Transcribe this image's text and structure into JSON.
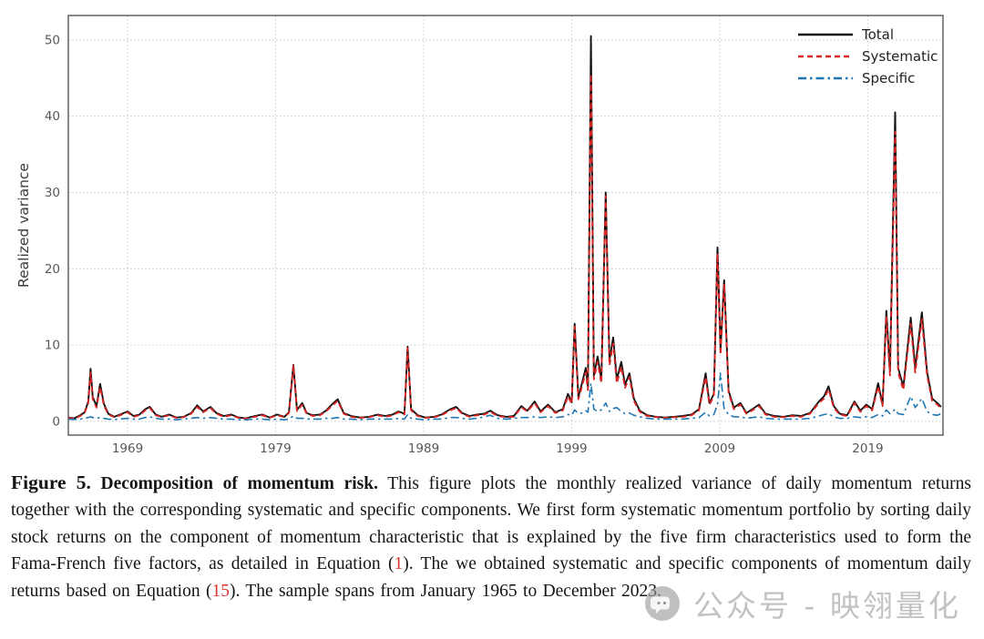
{
  "chart_data": {
    "type": "line",
    "title": "",
    "xlabel": "",
    "ylabel": "Realized variance",
    "xlim": [
      1965.0,
      2024.08
    ],
    "ylim": [
      -1.8,
      53.2
    ],
    "x_ticks": [
      1969,
      1979,
      1989,
      1999,
      2009,
      2019
    ],
    "y_ticks": [
      0,
      10,
      20,
      30,
      40,
      50
    ],
    "grid": true,
    "legend_position": "upper right",
    "series_meta": [
      {
        "name": "Total",
        "color": "#111111",
        "dash": "solid",
        "dasharray": ""
      },
      {
        "name": "Systematic",
        "color": "#d92523",
        "dash": "dashed",
        "dasharray": "6 4"
      },
      {
        "name": "Specific",
        "color": "#1f77b4",
        "dash": "dashdot",
        "dasharray": "9 4 2.5 4"
      }
    ],
    "columns": [
      "year",
      "total",
      "systematic",
      "specific"
    ],
    "points": [
      [
        1965.0,
        0.5,
        0.45,
        0.3
      ],
      [
        1965.4,
        0.4,
        0.35,
        0.25
      ],
      [
        1965.8,
        0.8,
        0.7,
        0.3
      ],
      [
        1966.1,
        1.2,
        1.1,
        0.4
      ],
      [
        1966.35,
        2.6,
        2.4,
        0.5
      ],
      [
        1966.5,
        6.9,
        6.4,
        0.6
      ],
      [
        1966.65,
        3.2,
        2.9,
        0.5
      ],
      [
        1966.9,
        2.0,
        1.8,
        0.4
      ],
      [
        1967.15,
        4.9,
        4.5,
        0.5
      ],
      [
        1967.4,
        2.3,
        2.1,
        0.4
      ],
      [
        1967.7,
        1.0,
        0.9,
        0.3
      ],
      [
        1968.1,
        0.6,
        0.55,
        0.25
      ],
      [
        1968.5,
        0.9,
        0.8,
        0.3
      ],
      [
        1969.0,
        1.3,
        1.2,
        0.4
      ],
      [
        1969.4,
        0.7,
        0.6,
        0.3
      ],
      [
        1969.8,
        0.9,
        0.8,
        0.3
      ],
      [
        1970.2,
        1.6,
        1.45,
        0.5
      ],
      [
        1970.5,
        1.9,
        1.75,
        0.6
      ],
      [
        1970.9,
        0.9,
        0.8,
        0.4
      ],
      [
        1971.3,
        0.6,
        0.55,
        0.3
      ],
      [
        1971.8,
        0.9,
        0.8,
        0.3
      ],
      [
        1972.3,
        0.5,
        0.45,
        0.2
      ],
      [
        1972.8,
        0.6,
        0.55,
        0.3
      ],
      [
        1973.3,
        1.1,
        1.0,
        0.4
      ],
      [
        1973.7,
        2.1,
        1.9,
        0.5
      ],
      [
        1974.1,
        1.3,
        1.2,
        0.4
      ],
      [
        1974.6,
        1.9,
        1.75,
        0.5
      ],
      [
        1975.0,
        1.1,
        1.0,
        0.4
      ],
      [
        1975.5,
        0.7,
        0.6,
        0.3
      ],
      [
        1976.0,
        0.9,
        0.8,
        0.3
      ],
      [
        1976.5,
        0.5,
        0.45,
        0.2
      ],
      [
        1977.0,
        0.4,
        0.35,
        0.2
      ],
      [
        1977.6,
        0.7,
        0.6,
        0.3
      ],
      [
        1978.1,
        0.9,
        0.8,
        0.3
      ],
      [
        1978.6,
        0.5,
        0.45,
        0.2
      ],
      [
        1979.1,
        0.9,
        0.8,
        0.3
      ],
      [
        1979.6,
        0.6,
        0.55,
        0.2
      ],
      [
        1979.9,
        1.2,
        1.1,
        0.3
      ],
      [
        1980.2,
        7.4,
        7.3,
        0.7
      ],
      [
        1980.45,
        1.5,
        1.35,
        0.4
      ],
      [
        1980.8,
        2.4,
        2.2,
        0.4
      ],
      [
        1981.1,
        1.1,
        1.0,
        0.3
      ],
      [
        1981.5,
        0.8,
        0.7,
        0.3
      ],
      [
        1982.0,
        0.9,
        0.8,
        0.3
      ],
      [
        1982.4,
        1.4,
        1.3,
        0.4
      ],
      [
        1982.85,
        2.3,
        2.1,
        0.4
      ],
      [
        1983.2,
        2.9,
        2.7,
        0.5
      ],
      [
        1983.6,
        1.1,
        1.0,
        0.3
      ],
      [
        1984.1,
        0.7,
        0.6,
        0.3
      ],
      [
        1984.7,
        0.5,
        0.45,
        0.2
      ],
      [
        1985.3,
        0.6,
        0.55,
        0.3
      ],
      [
        1985.9,
        0.9,
        0.8,
        0.3
      ],
      [
        1986.4,
        0.7,
        0.6,
        0.3
      ],
      [
        1986.9,
        0.9,
        0.8,
        0.3
      ],
      [
        1987.3,
        1.3,
        1.2,
        0.4
      ],
      [
        1987.7,
        1.0,
        0.9,
        0.3
      ],
      [
        1987.92,
        9.8,
        9.6,
        0.9
      ],
      [
        1988.15,
        1.6,
        1.45,
        0.4
      ],
      [
        1988.6,
        0.8,
        0.7,
        0.3
      ],
      [
        1989.1,
        0.5,
        0.45,
        0.2
      ],
      [
        1989.7,
        0.6,
        0.55,
        0.3
      ],
      [
        1990.2,
        0.9,
        0.8,
        0.3
      ],
      [
        1990.8,
        1.6,
        1.45,
        0.5
      ],
      [
        1991.2,
        1.9,
        1.75,
        0.5
      ],
      [
        1991.6,
        1.1,
        1.0,
        0.4
      ],
      [
        1992.1,
        0.7,
        0.6,
        0.3
      ],
      [
        1992.6,
        0.9,
        0.8,
        0.4
      ],
      [
        1993.1,
        1.0,
        0.9,
        0.6
      ],
      [
        1993.5,
        1.4,
        1.25,
        0.8
      ],
      [
        1994.0,
        0.8,
        0.7,
        0.4
      ],
      [
        1994.6,
        0.6,
        0.55,
        0.3
      ],
      [
        1995.1,
        0.7,
        0.6,
        0.4
      ],
      [
        1995.6,
        2.0,
        1.85,
        0.5
      ],
      [
        1996.0,
        1.4,
        1.3,
        0.5
      ],
      [
        1996.5,
        2.6,
        2.4,
        0.6
      ],
      [
        1996.9,
        1.3,
        1.2,
        0.5
      ],
      [
        1997.4,
        2.2,
        2.0,
        0.6
      ],
      [
        1997.9,
        1.2,
        1.1,
        0.5
      ],
      [
        1998.4,
        1.6,
        1.45,
        0.6
      ],
      [
        1998.75,
        3.6,
        3.3,
        0.9
      ],
      [
        1999.0,
        2.5,
        2.3,
        0.8
      ],
      [
        1999.2,
        12.8,
        12.4,
        1.5
      ],
      [
        1999.45,
        3.2,
        2.9,
        1.0
      ],
      [
        1999.7,
        5.0,
        4.6,
        1.1
      ],
      [
        1999.95,
        7.0,
        6.4,
        1.4
      ],
      [
        2000.1,
        4.5,
        4.1,
        1.2
      ],
      [
        2000.3,
        50.5,
        45.5,
        5.0
      ],
      [
        2000.5,
        6.0,
        5.5,
        1.6
      ],
      [
        2000.75,
        8.5,
        7.8,
        1.3
      ],
      [
        2001.0,
        5.5,
        5.0,
        1.5
      ],
      [
        2001.3,
        30.0,
        29.5,
        2.4
      ],
      [
        2001.55,
        8.0,
        7.3,
        1.3
      ],
      [
        2001.8,
        11.0,
        10.2,
        1.7
      ],
      [
        2002.05,
        5.5,
        5.0,
        1.8
      ],
      [
        2002.35,
        7.8,
        7.2,
        1.3
      ],
      [
        2002.6,
        4.8,
        4.4,
        1.0
      ],
      [
        2002.9,
        6.3,
        5.8,
        1.1
      ],
      [
        2003.2,
        3.0,
        2.7,
        0.8
      ],
      [
        2003.6,
        1.4,
        1.25,
        0.6
      ],
      [
        2004.1,
        0.8,
        0.7,
        0.4
      ],
      [
        2004.7,
        0.6,
        0.55,
        0.3
      ],
      [
        2005.3,
        0.5,
        0.45,
        0.3
      ],
      [
        2005.9,
        0.6,
        0.55,
        0.3
      ],
      [
        2006.5,
        0.7,
        0.6,
        0.3
      ],
      [
        2007.1,
        0.9,
        0.8,
        0.4
      ],
      [
        2007.6,
        1.6,
        1.45,
        0.5
      ],
      [
        2008.05,
        6.3,
        5.8,
        1.2
      ],
      [
        2008.3,
        2.4,
        2.2,
        0.7
      ],
      [
        2008.6,
        3.6,
        3.3,
        0.9
      ],
      [
        2008.85,
        22.8,
        22.0,
        2.2
      ],
      [
        2009.05,
        9.5,
        8.7,
        6.3
      ],
      [
        2009.3,
        18.5,
        18.0,
        1.6
      ],
      [
        2009.6,
        4.0,
        3.7,
        0.9
      ],
      [
        2009.95,
        1.8,
        1.6,
        0.6
      ],
      [
        2010.4,
        2.4,
        2.2,
        0.6
      ],
      [
        2010.8,
        1.1,
        1.0,
        0.4
      ],
      [
        2011.2,
        1.6,
        1.45,
        0.5
      ],
      [
        2011.65,
        2.2,
        2.0,
        0.6
      ],
      [
        2012.1,
        1.0,
        0.9,
        0.4
      ],
      [
        2012.7,
        0.7,
        0.6,
        0.3
      ],
      [
        2013.3,
        0.6,
        0.55,
        0.3
      ],
      [
        2013.9,
        0.8,
        0.7,
        0.3
      ],
      [
        2014.5,
        0.7,
        0.6,
        0.3
      ],
      [
        2015.1,
        1.1,
        1.0,
        0.4
      ],
      [
        2015.7,
        2.6,
        2.4,
        0.7
      ],
      [
        2016.05,
        3.3,
        3.0,
        0.9
      ],
      [
        2016.35,
        4.6,
        4.2,
        1.0
      ],
      [
        2016.7,
        2.0,
        1.8,
        0.6
      ],
      [
        2017.1,
        1.0,
        0.9,
        0.4
      ],
      [
        2017.6,
        0.8,
        0.7,
        0.4
      ],
      [
        2018.1,
        2.6,
        2.4,
        0.6
      ],
      [
        2018.5,
        1.4,
        1.25,
        0.5
      ],
      [
        2018.9,
        2.2,
        2.0,
        0.6
      ],
      [
        2019.3,
        1.6,
        1.45,
        0.5
      ],
      [
        2019.7,
        5.0,
        4.6,
        0.9
      ],
      [
        2020.0,
        2.2,
        2.0,
        0.7
      ],
      [
        2020.25,
        14.5,
        13.8,
        1.5
      ],
      [
        2020.5,
        6.5,
        6.0,
        1.0
      ],
      [
        2020.85,
        40.5,
        38.0,
        1.6
      ],
      [
        2021.05,
        7.0,
        6.4,
        1.0
      ],
      [
        2021.4,
        4.5,
        4.1,
        0.9
      ],
      [
        2021.9,
        13.6,
        12.8,
        3.3
      ],
      [
        2022.2,
        7.0,
        6.4,
        1.8
      ],
      [
        2022.65,
        14.3,
        13.4,
        3.0
      ],
      [
        2023.0,
        6.5,
        6.0,
        1.3
      ],
      [
        2023.35,
        3.0,
        2.7,
        0.9
      ],
      [
        2023.7,
        2.4,
        2.2,
        0.8
      ],
      [
        2023.95,
        1.9,
        1.7,
        1.0
      ]
    ]
  },
  "caption": {
    "fig_label": "Figure 5.",
    "title": "Decomposition of momentum risk.",
    "body_1": "This figure plots the monthly realized variance of daily momentum returns together with the corresponding systematic and specific components. We first form systematic momentum portfolio by sorting daily stock returns on the component of momentum characteristic that is explained by the five firm characteristics used to form the Fama-French five factors, as detailed in Equation (",
    "eq_1": "1",
    "body_2": "). The we obtained systematic and specific components of momentum daily returns based on Equation (",
    "eq_2": "15",
    "body_3": "). The sample spans from January 1965 to December 2023."
  },
  "watermark": {
    "icon": "wechat-bubble-icon",
    "text": "公众号 - 映翎量化"
  }
}
